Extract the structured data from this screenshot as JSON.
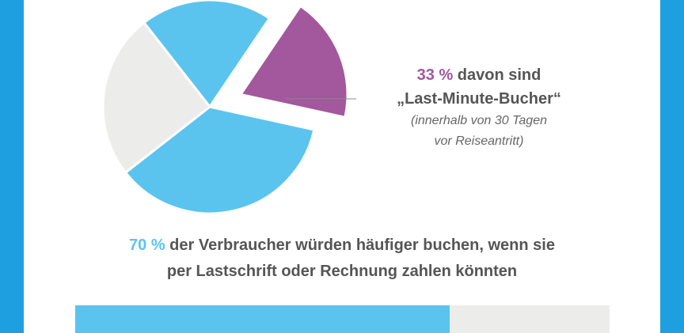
{
  "chart_data": [
    {
      "type": "pie",
      "slices": [
        {
          "value": 20,
          "color": "#5bc4ee",
          "exploded": false
        },
        {
          "value": 19,
          "color": "#a3579c",
          "exploded": true
        },
        {
          "value": 36,
          "color": "#5bc4ee",
          "exploded": false
        },
        {
          "value": 25,
          "color": "#ececea",
          "exploded": false
        }
      ]
    },
    {
      "type": "bar",
      "orientation": "horizontal",
      "values": [
        70
      ],
      "xlim": [
        0,
        100
      ],
      "colors": {
        "fill": "#5bc4ee",
        "track": "#ececea"
      }
    }
  ],
  "callout": {
    "percent": "33 %",
    "text": " davon sind",
    "quote": "„Last-Minute-Bucher“",
    "note_line1": "(innerhalb von 30 Tagen",
    "note_line2": "vor Reiseantritt)"
  },
  "headline": {
    "percent": "70 %",
    "line1": " der Verbraucher würden häufiger buchen, wenn sie",
    "line2": "per Lastschrift oder Rechnung zahlen könnten"
  },
  "colors": {
    "frame": "#1ea0e0",
    "purple": "#a3579c",
    "blue": "#5bc4ee",
    "gray": "#ececea",
    "text": "#555555"
  }
}
